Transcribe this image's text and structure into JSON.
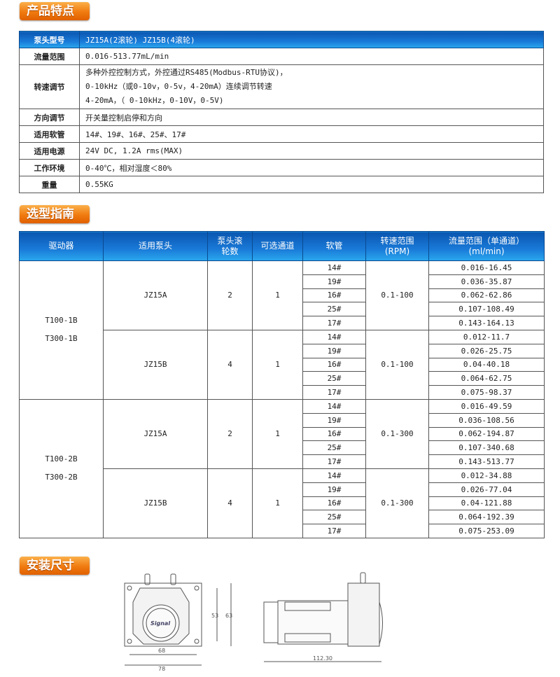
{
  "sections": {
    "features": "产品特点",
    "selection": "选型指南",
    "install": "安装尺寸"
  },
  "spec": {
    "header": {
      "label": "泵头型号",
      "value": "JZ15A(2滚轮) JZ15B(4滚轮)"
    },
    "rows": [
      {
        "label": "流量范围",
        "lines": [
          "0.016-513.77mL/min"
        ]
      },
      {
        "label": "转速调节",
        "lines": [
          "多种外控控制方式，外控通过RS485(Modbus-RTU协议)，",
          "0-10kHz（或0-10v，0-5v，4-20mA）连续调节转速",
          "4-20mA，（ 0-10kHz，0-10V，0-5V)"
        ]
      },
      {
        "label": "方向调节",
        "lines": [
          "开关量控制启停和方向"
        ]
      },
      {
        "label": "适用软管",
        "lines": [
          "14#、19#、16#、25#、17#"
        ]
      },
      {
        "label": "适用电源",
        "lines": [
          "24V DC, 1.2A rms(MAX)"
        ]
      },
      {
        "label": "工作环境",
        "lines": [
          "0-40℃，相对湿度＜80%"
        ]
      },
      {
        "label": "重量",
        "lines": [
          "0.55KG"
        ]
      }
    ]
  },
  "selection": {
    "headers": [
      "驱动器",
      "适用泵头",
      "泵头滚\n轮数",
      "可选通道",
      "软管",
      "转速范围\n(RPM)",
      "流量范围（单通道）\n(ml/min)"
    ],
    "groups": [
      {
        "drivers": [
          "T100-1B",
          "T300-1B"
        ],
        "pumps": [
          {
            "head": "JZ15A",
            "rollers": "2",
            "channels": "1",
            "speed": "0.1-100",
            "hoses": [
              "14#",
              "19#",
              "16#",
              "25#",
              "17#"
            ],
            "flows": [
              "0.016-16.45",
              "0.036-35.87",
              "0.062-62.86",
              "0.107-108.49",
              "0.143-164.13"
            ]
          },
          {
            "head": "JZ15B",
            "rollers": "4",
            "channels": "1",
            "speed": "0.1-100",
            "hoses": [
              "14#",
              "19#",
              "16#",
              "25#",
              "17#"
            ],
            "flows": [
              "0.012-11.7",
              "0.026-25.75",
              "0.04-40.18",
              "0.064-62.75",
              "0.075-98.37"
            ]
          }
        ]
      },
      {
        "drivers": [
          "T100-2B",
          "T300-2B"
        ],
        "pumps": [
          {
            "head": "JZ15A",
            "rollers": "2",
            "channels": "1",
            "speed": "0.1-300",
            "hoses": [
              "14#",
              "19#",
              "16#",
              "25#",
              "17#"
            ],
            "flows": [
              "0.016-49.59",
              "0.036-108.56",
              "0.062-194.87",
              "0.107-340.68",
              "0.143-513.77"
            ]
          },
          {
            "head": "JZ15B",
            "rollers": "4",
            "channels": "1",
            "speed": "0.1-300",
            "hoses": [
              "14#",
              "19#",
              "16#",
              "25#",
              "17#"
            ],
            "flows": [
              "0.012-34.88",
              "0.026-77.04",
              "0.04-121.88",
              "0.064-192.39",
              "0.075-253.09"
            ]
          }
        ]
      }
    ]
  },
  "drawing": {
    "front": {
      "inner_height": "53",
      "outer_height": "63",
      "inner_width": "68",
      "outer_width": "78",
      "logo": "Signal"
    },
    "side": {
      "length": "112.30"
    }
  }
}
